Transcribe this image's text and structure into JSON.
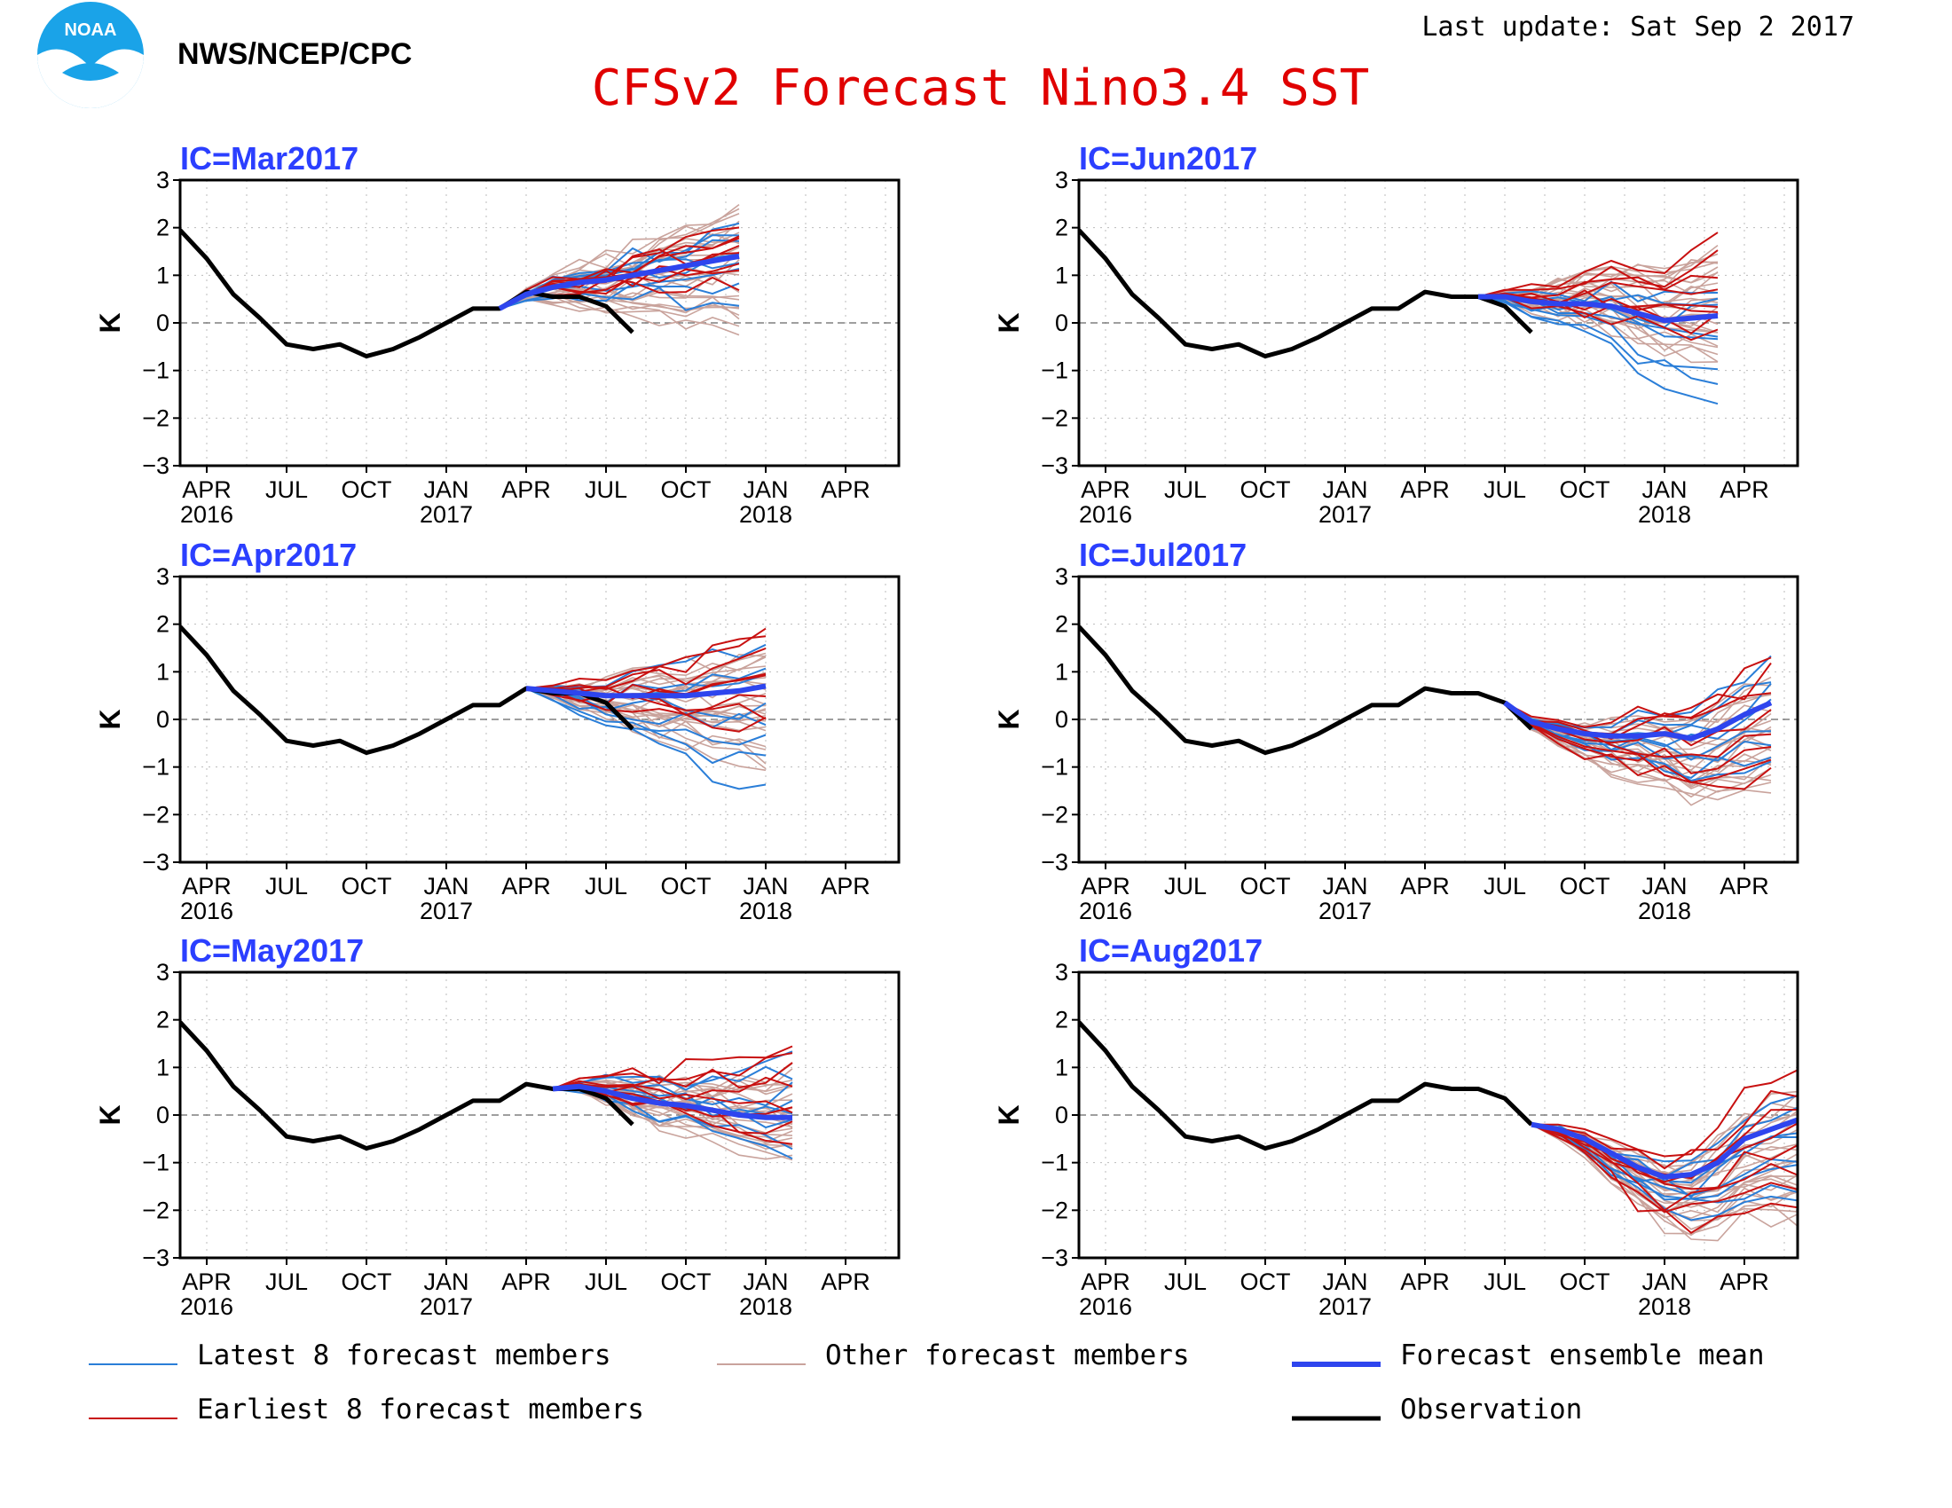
{
  "header": {
    "org": "NWS/NCEP/CPC",
    "title": "CFSv2 Forecast Nino3.4 SST",
    "update": "Last update: Sat Sep 2 2017",
    "logo_text": "NOAA"
  },
  "colors": {
    "title": "#e00000",
    "panel_title": "#2b3fff",
    "latest": "#2a7ed8",
    "earliest": "#c81010",
    "other": "#c9a39c",
    "mean": "#2e45ee",
    "obs": "#000000"
  },
  "axis": {
    "ylabel": "K",
    "yticks": [
      "3",
      "2",
      "1",
      "0",
      "−1",
      "−2",
      "−3"
    ],
    "ylim": [
      -3,
      3
    ],
    "months": [
      "APR",
      "JUL",
      "OCT",
      "JAN",
      "APR",
      "JUL",
      "OCT",
      "JAN",
      "APR"
    ],
    "years": [
      "2016",
      "2017",
      "2018"
    ],
    "xlim_months_since_mar2016": [
      0,
      27
    ]
  },
  "legend": {
    "latest": "Latest 8 forecast members",
    "other": "Other forecast members",
    "mean": "Forecast ensemble mean",
    "earliest": "Earliest 8 forecast members",
    "obs": "Observation"
  },
  "chart_data": [
    {
      "type": "line",
      "title": "IC=Mar2017",
      "observation": [
        [
          0,
          1.95
        ],
        [
          1,
          1.35
        ],
        [
          2,
          0.6
        ],
        [
          3,
          0.1
        ],
        [
          4,
          -0.45
        ],
        [
          5,
          -0.55
        ],
        [
          6,
          -0.45
        ],
        [
          7,
          -0.7
        ],
        [
          8,
          -0.55
        ],
        [
          9,
          -0.3
        ],
        [
          10,
          0
        ],
        [
          11,
          0.3
        ],
        [
          12,
          0.3
        ],
        [
          13,
          0.65
        ],
        [
          14,
          0.55
        ],
        [
          15,
          0.55
        ],
        [
          16,
          0.35
        ],
        [
          17,
          -0.2
        ]
      ],
      "mean": [
        [
          12,
          0.3
        ],
        [
          13,
          0.6
        ],
        [
          14,
          0.75
        ],
        [
          15,
          0.85
        ],
        [
          16,
          0.9
        ],
        [
          17,
          1.0
        ],
        [
          18,
          1.1
        ],
        [
          19,
          1.2
        ],
        [
          20,
          1.3
        ],
        [
          21,
          1.4
        ]
      ],
      "earliest_end_range": [
        0.9,
        2.0
      ],
      "latest_end_range": [
        0.5,
        2.1
      ],
      "other_end_range": [
        -0.2,
        2.5
      ]
    },
    {
      "type": "line",
      "title": "IC=Apr2017",
      "observation": [
        [
          0,
          1.95
        ],
        [
          1,
          1.35
        ],
        [
          2,
          0.6
        ],
        [
          3,
          0.1
        ],
        [
          4,
          -0.45
        ],
        [
          5,
          -0.55
        ],
        [
          6,
          -0.45
        ],
        [
          7,
          -0.7
        ],
        [
          8,
          -0.55
        ],
        [
          9,
          -0.3
        ],
        [
          10,
          0
        ],
        [
          11,
          0.3
        ],
        [
          12,
          0.3
        ],
        [
          13,
          0.65
        ],
        [
          14,
          0.55
        ],
        [
          15,
          0.55
        ],
        [
          16,
          0.35
        ],
        [
          17,
          -0.2
        ]
      ],
      "mean": [
        [
          13,
          0.65
        ],
        [
          14,
          0.6
        ],
        [
          15,
          0.55
        ],
        [
          16,
          0.5
        ],
        [
          17,
          0.5
        ],
        [
          18,
          0.5
        ],
        [
          19,
          0.5
        ],
        [
          20,
          0.55
        ],
        [
          21,
          0.6
        ],
        [
          22,
          0.7
        ]
      ],
      "earliest_end_range": [
        -0.2,
        2.1
      ],
      "latest_end_range": [
        -1.5,
        1.7
      ],
      "other_end_range": [
        -0.9,
        1.6
      ]
    },
    {
      "type": "line",
      "title": "IC=May2017",
      "observation": [
        [
          0,
          1.95
        ],
        [
          1,
          1.35
        ],
        [
          2,
          0.6
        ],
        [
          3,
          0.1
        ],
        [
          4,
          -0.45
        ],
        [
          5,
          -0.55
        ],
        [
          6,
          -0.45
        ],
        [
          7,
          -0.7
        ],
        [
          8,
          -0.55
        ],
        [
          9,
          -0.3
        ],
        [
          10,
          0
        ],
        [
          11,
          0.3
        ],
        [
          12,
          0.3
        ],
        [
          13,
          0.65
        ],
        [
          14,
          0.55
        ],
        [
          15,
          0.55
        ],
        [
          16,
          0.35
        ],
        [
          17,
          -0.2
        ]
      ],
      "mean": [
        [
          14,
          0.55
        ],
        [
          15,
          0.6
        ],
        [
          16,
          0.5
        ],
        [
          17,
          0.35
        ],
        [
          18,
          0.25
        ],
        [
          19,
          0.2
        ],
        [
          20,
          0.1
        ],
        [
          21,
          0.0
        ],
        [
          22,
          -0.05
        ],
        [
          23,
          -0.05
        ]
      ],
      "earliest_end_range": [
        -0.5,
        1.5
      ],
      "latest_end_range": [
        -0.8,
        1.1
      ],
      "other_end_range": [
        -1.0,
        0.9
      ]
    },
    {
      "type": "line",
      "title": "IC=Jun2017",
      "observation": [
        [
          0,
          1.95
        ],
        [
          1,
          1.35
        ],
        [
          2,
          0.6
        ],
        [
          3,
          0.1
        ],
        [
          4,
          -0.45
        ],
        [
          5,
          -0.55
        ],
        [
          6,
          -0.45
        ],
        [
          7,
          -0.7
        ],
        [
          8,
          -0.55
        ],
        [
          9,
          -0.3
        ],
        [
          10,
          0
        ],
        [
          11,
          0.3
        ],
        [
          12,
          0.3
        ],
        [
          13,
          0.65
        ],
        [
          14,
          0.55
        ],
        [
          15,
          0.55
        ],
        [
          16,
          0.35
        ],
        [
          17,
          -0.2
        ]
      ],
      "mean": [
        [
          15,
          0.55
        ],
        [
          16,
          0.55
        ],
        [
          17,
          0.45
        ],
        [
          18,
          0.4
        ],
        [
          19,
          0.4
        ],
        [
          20,
          0.35
        ],
        [
          21,
          0.2
        ],
        [
          22,
          0.05
        ],
        [
          23,
          0.1
        ],
        [
          24,
          0.15
        ]
      ],
      "earliest_end_range": [
        -0.3,
        1.6
      ],
      "latest_end_range": [
        -1.5,
        0.9
      ],
      "other_end_range": [
        -0.8,
        1.7
      ]
    },
    {
      "type": "line",
      "title": "IC=Jul2017",
      "observation": [
        [
          0,
          1.95
        ],
        [
          1,
          1.35
        ],
        [
          2,
          0.6
        ],
        [
          3,
          0.1
        ],
        [
          4,
          -0.45
        ],
        [
          5,
          -0.55
        ],
        [
          6,
          -0.45
        ],
        [
          7,
          -0.7
        ],
        [
          8,
          -0.55
        ],
        [
          9,
          -0.3
        ],
        [
          10,
          0
        ],
        [
          11,
          0.3
        ],
        [
          12,
          0.3
        ],
        [
          13,
          0.65
        ],
        [
          14,
          0.55
        ],
        [
          15,
          0.55
        ],
        [
          16,
          0.35
        ],
        [
          17,
          -0.2
        ]
      ],
      "mean": [
        [
          16,
          0.35
        ],
        [
          17,
          -0.05
        ],
        [
          18,
          -0.2
        ],
        [
          19,
          -0.3
        ],
        [
          20,
          -0.35
        ],
        [
          21,
          -0.35
        ],
        [
          22,
          -0.3
        ],
        [
          23,
          -0.4
        ],
        [
          24,
          -0.2
        ],
        [
          25,
          0.1
        ],
        [
          26,
          0.35
        ]
      ],
      "earliest_end_range": [
        -1.2,
        1.4
      ],
      "latest_end_range": [
        -1.0,
        1.1
      ],
      "other_end_range": [
        -1.6,
        0.9
      ]
    },
    {
      "type": "line",
      "title": "IC=Aug2017",
      "observation": [
        [
          0,
          1.95
        ],
        [
          1,
          1.35
        ],
        [
          2,
          0.6
        ],
        [
          3,
          0.1
        ],
        [
          4,
          -0.45
        ],
        [
          5,
          -0.55
        ],
        [
          6,
          -0.45
        ],
        [
          7,
          -0.7
        ],
        [
          8,
          -0.55
        ],
        [
          9,
          -0.3
        ],
        [
          10,
          0
        ],
        [
          11,
          0.3
        ],
        [
          12,
          0.3
        ],
        [
          13,
          0.65
        ],
        [
          14,
          0.55
        ],
        [
          15,
          0.55
        ],
        [
          16,
          0.35
        ],
        [
          17,
          -0.2
        ]
      ],
      "mean": [
        [
          17,
          -0.2
        ],
        [
          18,
          -0.3
        ],
        [
          19,
          -0.5
        ],
        [
          20,
          -0.8
        ],
        [
          21,
          -1.1
        ],
        [
          22,
          -1.3
        ],
        [
          23,
          -1.25
        ],
        [
          24,
          -1.0
        ],
        [
          25,
          -0.5
        ],
        [
          26,
          -0.3
        ],
        [
          27,
          -0.1
        ]
      ],
      "earliest_end_range": [
        -2.0,
        1.0
      ],
      "latest_end_range": [
        -1.8,
        0.3
      ],
      "other_end_range": [
        -2.2,
        0.5
      ]
    }
  ]
}
